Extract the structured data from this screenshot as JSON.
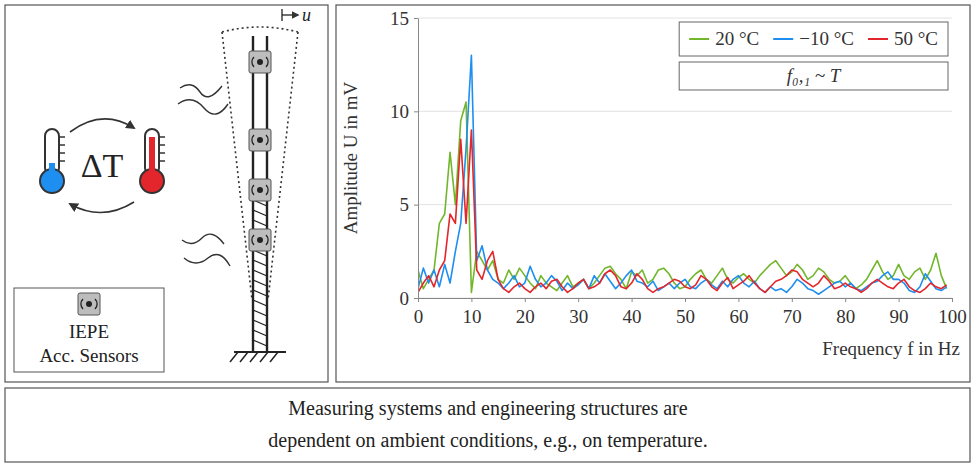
{
  "chart_data": {
    "type": "line",
    "x_label": "Frequency f in Hz",
    "y_label": "Amplitude U in mV",
    "annotation": "f₀,₁ ~ T",
    "legend": "upper right",
    "grid": true,
    "xlim": [
      0,
      100
    ],
    "ylim": [
      0,
      15
    ],
    "xticks": [
      0,
      10,
      20,
      30,
      40,
      50,
      60,
      70,
      80,
      90,
      100
    ],
    "yticks": [
      0,
      5,
      10,
      15
    ],
    "x": [
      0,
      1,
      2,
      3,
      4,
      5,
      6,
      7,
      8,
      9,
      10,
      11,
      12,
      13,
      14,
      15,
      16,
      17,
      18,
      19,
      20,
      21,
      22,
      23,
      24,
      25,
      26,
      27,
      28,
      29,
      30,
      31,
      32,
      33,
      34,
      35,
      36,
      37,
      38,
      39,
      40,
      41,
      42,
      43,
      44,
      45,
      46,
      47,
      48,
      49,
      50,
      51,
      52,
      53,
      54,
      55,
      56,
      57,
      58,
      59,
      60,
      61,
      62,
      63,
      64,
      65,
      66,
      67,
      68,
      69,
      70,
      71,
      72,
      73,
      74,
      75,
      76,
      77,
      78,
      79,
      80,
      81,
      82,
      83,
      84,
      85,
      86,
      87,
      88,
      89,
      90,
      91,
      92,
      93,
      94,
      95,
      96,
      97,
      98,
      99
    ],
    "series": [
      {
        "name": "20 °C",
        "color": "#72b62c",
        "values": [
          1.5,
          0.5,
          1.0,
          1.5,
          4.0,
          4.5,
          7.8,
          5.0,
          9.5,
          10.5,
          0.3,
          2.5,
          2.0,
          1.5,
          2.0,
          1.0,
          0.8,
          1.5,
          1.0,
          1.6,
          1.2,
          0.8,
          0.5,
          1.2,
          0.8,
          0.6,
          0.4,
          0.8,
          1.2,
          0.6,
          0.8,
          1.0,
          0.5,
          0.8,
          1.2,
          1.6,
          1.7,
          1.3,
          1.0,
          0.5,
          1.4,
          1.2,
          1.5,
          0.8,
          1.0,
          1.5,
          1.6,
          1.3,
          0.8,
          0.5,
          0.6,
          1.0,
          1.3,
          1.5,
          1.0,
          0.8,
          1.2,
          1.6,
          1.0,
          0.8,
          1.1,
          1.3,
          1.0,
          0.8,
          1.2,
          1.5,
          1.8,
          2.0,
          1.6,
          1.2,
          1.4,
          1.8,
          1.5,
          1.0,
          1.2,
          1.6,
          1.4,
          1.0,
          0.8,
          0.9,
          1.2,
          0.8,
          0.5,
          0.7,
          1.0,
          1.5,
          2.0,
          1.4,
          1.0,
          1.2,
          1.8,
          1.2,
          1.0,
          1.4,
          1.6,
          1.0,
          1.5,
          2.4,
          1.2,
          0.5
        ]
      },
      {
        "name": "−10 °C",
        "color": "#1e8ff0",
        "values": [
          0.5,
          1.6,
          0.8,
          1.5,
          0.6,
          1.8,
          0.8,
          2.5,
          4.0,
          8.0,
          13.0,
          2.0,
          2.8,
          1.5,
          1.0,
          0.8,
          0.5,
          0.8,
          1.2,
          0.6,
          0.8,
          1.7,
          1.0,
          0.6,
          0.8,
          1.2,
          0.9,
          0.4,
          0.8,
          0.5,
          0.7,
          1.0,
          0.5,
          1.2,
          0.8,
          1.3,
          0.9,
          0.5,
          0.8,
          1.2,
          1.5,
          0.9,
          0.8,
          0.6,
          0.9,
          0.4,
          0.6,
          0.8,
          0.5,
          0.8,
          1.0,
          0.6,
          0.5,
          0.8,
          1.0,
          0.7,
          0.5,
          0.9,
          0.6,
          1.0,
          1.2,
          0.8,
          0.6,
          0.9,
          0.5,
          0.3,
          0.6,
          0.4,
          0.5,
          0.3,
          0.6,
          1.0,
          0.8,
          0.5,
          0.4,
          0.2,
          0.4,
          0.6,
          0.8,
          0.9,
          0.6,
          0.8,
          0.5,
          0.4,
          0.6,
          0.8,
          0.9,
          1.2,
          1.4,
          1.0,
          1.0,
          0.8,
          0.4,
          0.3,
          0.6,
          1.3,
          0.9,
          0.5,
          0.4,
          0.6
        ]
      },
      {
        "name": "50 °C",
        "color": "#e3262b",
        "values": [
          0.3,
          0.8,
          1.2,
          0.6,
          1.5,
          2.0,
          4.5,
          4.0,
          8.5,
          4.0,
          9.0,
          1.5,
          1.0,
          2.0,
          2.5,
          1.0,
          0.5,
          0.3,
          0.6,
          0.8,
          0.5,
          0.3,
          0.6,
          0.8,
          0.5,
          0.9,
          1.0,
          0.6,
          0.3,
          0.5,
          0.8,
          1.0,
          0.5,
          0.6,
          0.8,
          1.3,
          1.5,
          1.2,
          0.6,
          0.5,
          0.8,
          1.3,
          1.0,
          0.5,
          0.3,
          0.5,
          0.6,
          0.8,
          1.0,
          0.9,
          0.6,
          0.5,
          0.7,
          1.2,
          1.0,
          0.6,
          0.4,
          0.8,
          1.1,
          0.5,
          0.7,
          0.9,
          1.2,
          0.8,
          0.5,
          0.3,
          0.6,
          0.9,
          1.0,
          1.2,
          1.5,
          1.4,
          1.0,
          0.8,
          0.6,
          0.8,
          1.2,
          0.9,
          0.5,
          0.6,
          0.8,
          0.6,
          0.5,
          0.3,
          0.5,
          0.8,
          1.0,
          0.8,
          0.6,
          0.5,
          0.8,
          1.0,
          0.6,
          0.4,
          0.3,
          0.5,
          0.8,
          0.6,
          0.5,
          0.7
        ]
      }
    ]
  },
  "diagram": {
    "displacement_label": "u",
    "temperature_label": "ΔT",
    "sensor_legend": [
      "IEPE",
      "Acc. Sensors"
    ]
  },
  "caption": {
    "lines": [
      "Measuring systems and engineering structures are",
      "dependent on ambient conditions, e.g., on temperature."
    ]
  }
}
